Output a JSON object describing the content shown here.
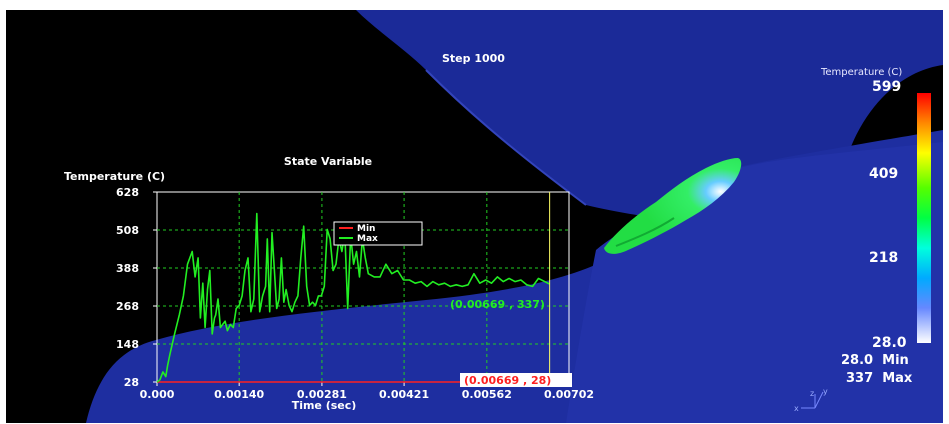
{
  "scene": {
    "step_label": "Step 1000",
    "colorbar": {
      "title": "Temperature (C)",
      "max_label": "599",
      "tick2": "409",
      "tick3": "218",
      "min_label": "28.0",
      "stops": [
        "#ff0000",
        "#ff8800",
        "#ffff00",
        "#55ff00",
        "#00ff44",
        "#00ffdd",
        "#00aaff",
        "#6688ff",
        "#ffffff"
      ]
    },
    "summary": {
      "min_value": "28.0",
      "min_word": "Min",
      "max_value": "337",
      "max_word": "Max"
    },
    "triad": {
      "x": "x",
      "y": "y",
      "z": "z"
    },
    "colors": {
      "background": "#000000",
      "body": "#1a2a9a",
      "hot_region": "#33ee44"
    }
  },
  "chart_data": {
    "type": "line",
    "title": "State Variable",
    "ylabel": "Temperature (C)",
    "xlabel": "Time (sec)",
    "xlim": [
      0,
      0.00702
    ],
    "ylim": [
      28,
      628
    ],
    "xticks": [
      0,
      0.0014,
      0.00281,
      0.00421,
      0.00562,
      0.00702
    ],
    "xtick_labels": [
      "0.000",
      "0.00140",
      "0.00281",
      "0.00421",
      "0.00562",
      "0.00702"
    ],
    "yticks": [
      28,
      148,
      268,
      388,
      508,
      628
    ],
    "ytick_labels": [
      "28",
      "148",
      "268",
      "388",
      "508",
      "628"
    ],
    "grid": true,
    "legend": {
      "placement": "top-center",
      "entries": [
        "Min",
        "Max"
      ]
    },
    "cursor_x": 0.00669,
    "series": [
      {
        "name": "Min",
        "color": "#ff2020",
        "x": [
          0,
          0.00669
        ],
        "y": [
          28,
          28
        ]
      },
      {
        "name": "Max",
        "color": "#22ee22",
        "x": [
          0,
          5e-05,
          0.0001,
          0.00015,
          0.00018,
          0.00022,
          0.0003,
          0.00038,
          0.00045,
          0.00052,
          0.0006,
          0.00065,
          0.0007,
          0.00074,
          0.00078,
          0.00082,
          0.00086,
          0.0009,
          0.00094,
          0.00098,
          0.001,
          0.00104,
          0.00108,
          0.00112,
          0.00116,
          0.0012,
          0.00125,
          0.0013,
          0.00135,
          0.0014,
          0.00145,
          0.0015,
          0.00155,
          0.0016,
          0.00165,
          0.0017,
          0.00175,
          0.0018,
          0.00185,
          0.00188,
          0.00192,
          0.00196,
          0.002,
          0.00204,
          0.00208,
          0.00212,
          0.00216,
          0.0022,
          0.00225,
          0.0023,
          0.00235,
          0.0024,
          0.00245,
          0.0025,
          0.00255,
          0.0026,
          0.00265,
          0.0027,
          0.00275,
          0.0028,
          0.00285,
          0.0029,
          0.00295,
          0.003,
          0.00305,
          0.0031,
          0.00315,
          0.0032,
          0.00325,
          0.0033,
          0.00335,
          0.0034,
          0.00345,
          0.0035,
          0.00355,
          0.0036,
          0.0037,
          0.0038,
          0.0039,
          0.004,
          0.0041,
          0.0042,
          0.0043,
          0.0044,
          0.0045,
          0.0046,
          0.0047,
          0.0048,
          0.0049,
          0.005,
          0.0051,
          0.0052,
          0.0053,
          0.0054,
          0.0055,
          0.0056,
          0.0057,
          0.0058,
          0.0059,
          0.006,
          0.0061,
          0.0062,
          0.0063,
          0.0064,
          0.0065,
          0.00669
        ],
        "y": [
          28,
          35,
          60,
          45,
          80,
          115,
          180,
          240,
          300,
          400,
          440,
          360,
          420,
          230,
          340,
          200,
          320,
          380,
          180,
          230,
          240,
          290,
          200,
          210,
          220,
          190,
          210,
          200,
          260,
          270,
          300,
          380,
          420,
          250,
          290,
          560,
          250,
          300,
          330,
          480,
          250,
          500,
          380,
          260,
          290,
          420,
          280,
          320,
          270,
          250,
          280,
          300,
          420,
          520,
          330,
          270,
          280,
          270,
          300,
          300,
          330,
          510,
          480,
          380,
          400,
          480,
          440,
          500,
          260,
          490,
          400,
          440,
          360,
          480,
          420,
          370,
          360,
          360,
          400,
          370,
          380,
          350,
          350,
          340,
          345,
          330,
          345,
          335,
          340,
          330,
          335,
          330,
          335,
          370,
          340,
          350,
          340,
          360,
          345,
          355,
          345,
          350,
          335,
          330,
          355,
          337
        ]
      }
    ],
    "annotations": [
      {
        "text": "(0.00669 , 337)",
        "color": "#22ee22"
      },
      {
        "text": "(0.00669 , 28)",
        "color": "#ff2020"
      }
    ]
  }
}
